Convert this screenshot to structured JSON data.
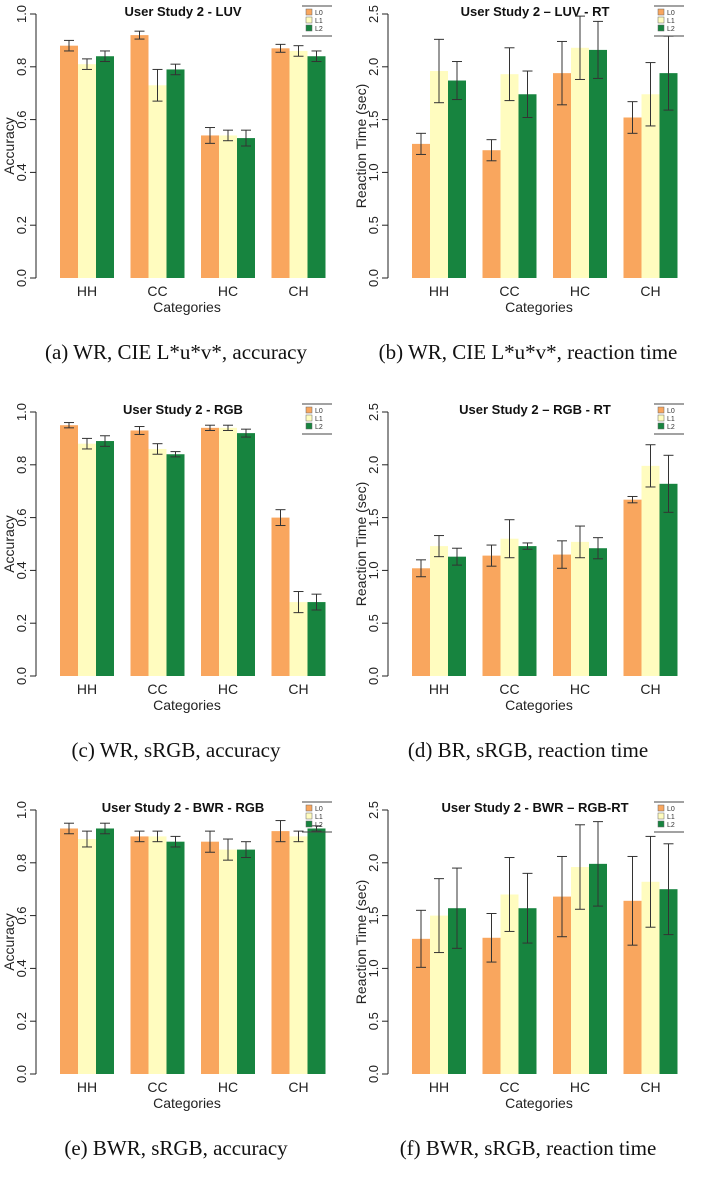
{
  "colors": {
    "L0": "#F9A65E",
    "L1": "#FFFCBF",
    "L2": "#17843F"
  },
  "chart_data": [
    {
      "type": "bar",
      "title": "User  Study 2 - LUV",
      "caption": "(a)  WR, CIE L*u*v*, accuracy",
      "xlabel": "Categories",
      "ylabel": "Accuracy",
      "ylim": [
        0,
        1.0
      ],
      "yticks": [
        "0.0",
        "0.2",
        "0.4",
        "0.6",
        "0.8",
        "1.0"
      ],
      "categories": [
        "HH",
        "CC",
        "HC",
        "CH"
      ],
      "legend": [
        "L0",
        "L1",
        "L2"
      ],
      "legend_position": "top-right",
      "series": [
        {
          "name": "L0",
          "values": [
            0.88,
            0.92,
            0.54,
            0.87
          ],
          "errors": [
            0.02,
            0.015,
            0.03,
            0.015
          ]
        },
        {
          "name": "L1",
          "values": [
            0.81,
            0.73,
            0.54,
            0.86
          ],
          "errors": [
            0.02,
            0.06,
            0.02,
            0.02
          ]
        },
        {
          "name": "L2",
          "values": [
            0.84,
            0.79,
            0.53,
            0.84
          ],
          "errors": [
            0.02,
            0.02,
            0.03,
            0.02
          ]
        }
      ]
    },
    {
      "type": "bar",
      "title": "User  Study 2 – LUV - RT",
      "caption": "(b)  WR, CIE L*u*v*, reaction time",
      "xlabel": "Categories",
      "ylabel": "Reaction Time (sec)",
      "ylim": [
        0,
        2.5
      ],
      "yticks": [
        "0.0",
        "0.5",
        "1.0",
        "1.5",
        "2.0",
        "2.5"
      ],
      "categories": [
        "HH",
        "CC",
        "HC",
        "CH"
      ],
      "legend": [
        "L0",
        "L1",
        "L2"
      ],
      "legend_position": "top-right",
      "series": [
        {
          "name": "L0",
          "values": [
            1.27,
            1.21,
            1.94,
            1.52
          ],
          "errors": [
            0.1,
            0.1,
            0.3,
            0.15
          ]
        },
        {
          "name": "L1",
          "values": [
            1.96,
            1.93,
            2.18,
            1.74
          ],
          "errors": [
            0.3,
            0.25,
            0.3,
            0.3
          ]
        },
        {
          "name": "L2",
          "values": [
            1.87,
            1.74,
            2.16,
            1.94
          ],
          "errors": [
            0.18,
            0.22,
            0.27,
            0.35
          ]
        }
      ]
    },
    {
      "type": "bar",
      "title": "User Study 2 - RGB",
      "caption": "(c)  WR, sRGB, accuracy",
      "xlabel": "Categories",
      "ylabel": "Accuracy",
      "ylim": [
        0,
        1.0
      ],
      "yticks": [
        "0.0",
        "0.2",
        "0.4",
        "0.6",
        "0.8",
        "1.0"
      ],
      "categories": [
        "HH",
        "CC",
        "HC",
        "CH"
      ],
      "legend": [
        "L0",
        "L1",
        "L2"
      ],
      "legend_position": "top-right",
      "series": [
        {
          "name": "L0",
          "values": [
            0.95,
            0.93,
            0.94,
            0.6
          ],
          "errors": [
            0.01,
            0.015,
            0.01,
            0.03
          ]
        },
        {
          "name": "L1",
          "values": [
            0.88,
            0.86,
            0.94,
            0.28
          ],
          "errors": [
            0.02,
            0.02,
            0.01,
            0.04
          ]
        },
        {
          "name": "L2",
          "values": [
            0.89,
            0.84,
            0.92,
            0.28
          ],
          "errors": [
            0.02,
            0.01,
            0.015,
            0.03
          ]
        }
      ]
    },
    {
      "type": "bar",
      "title": "User Study 2 – RGB - RT",
      "caption": "(d)  BR, sRGB, reaction time",
      "xlabel": "Categories",
      "ylabel": "Reaction Time (sec)",
      "ylim": [
        0,
        2.5
      ],
      "yticks": [
        "0.0",
        "0.5",
        "1.0",
        "1.5",
        "2.0",
        "2.5"
      ],
      "categories": [
        "HH",
        "CC",
        "HC",
        "CH"
      ],
      "legend": [
        "L0",
        "L1",
        "L2"
      ],
      "legend_position": "top-right",
      "series": [
        {
          "name": "L0",
          "values": [
            1.02,
            1.14,
            1.15,
            1.67
          ],
          "errors": [
            0.08,
            0.1,
            0.13,
            0.03
          ]
        },
        {
          "name": "L1",
          "values": [
            1.23,
            1.3,
            1.27,
            1.99
          ],
          "errors": [
            0.1,
            0.18,
            0.15,
            0.2
          ]
        },
        {
          "name": "L2",
          "values": [
            1.13,
            1.23,
            1.21,
            1.82
          ],
          "errors": [
            0.08,
            0.03,
            0.1,
            0.27
          ]
        }
      ]
    },
    {
      "type": "bar",
      "title": "User  Study 2 - BWR - RGB",
      "caption": "(e)  BWR, sRGB, accuracy",
      "xlabel": "Categories",
      "ylabel": "Accuracy",
      "ylim": [
        0,
        1.0
      ],
      "yticks": [
        "0.0",
        "0.2",
        "0.4",
        "0.6",
        "0.8",
        "1.0"
      ],
      "categories": [
        "HH",
        "CC",
        "HC",
        "CH"
      ],
      "legend": [
        "L0",
        "L1",
        "L2"
      ],
      "legend_position": "top-right",
      "series": [
        {
          "name": "L0",
          "values": [
            0.93,
            0.9,
            0.88,
            0.92
          ],
          "errors": [
            0.02,
            0.02,
            0.04,
            0.04
          ]
        },
        {
          "name": "L1",
          "values": [
            0.89,
            0.9,
            0.85,
            0.9
          ],
          "errors": [
            0.03,
            0.02,
            0.04,
            0.02
          ]
        },
        {
          "name": "L2",
          "values": [
            0.93,
            0.88,
            0.85,
            0.93
          ],
          "errors": [
            0.02,
            0.02,
            0.03,
            0.01
          ]
        }
      ]
    },
    {
      "type": "bar",
      "title": "User  Study 2 - BWR – RGB-RT",
      "caption": "(f)  BWR, sRGB, reaction time",
      "xlabel": "Categories",
      "ylabel": "Reaction Time (sec)",
      "ylim": [
        0,
        2.5
      ],
      "yticks": [
        "0.0",
        "0.5",
        "1.0",
        "1.5",
        "2.0",
        "2.5"
      ],
      "categories": [
        "HH",
        "CC",
        "HC",
        "CH"
      ],
      "legend": [
        "L0",
        "L1",
        "L2"
      ],
      "legend_position": "top-right",
      "series": [
        {
          "name": "L0",
          "values": [
            1.28,
            1.29,
            1.68,
            1.64
          ],
          "errors": [
            0.27,
            0.23,
            0.38,
            0.42
          ]
        },
        {
          "name": "L1",
          "values": [
            1.5,
            1.7,
            1.96,
            1.82
          ],
          "errors": [
            0.35,
            0.35,
            0.4,
            0.43
          ]
        },
        {
          "name": "L2",
          "values": [
            1.57,
            1.57,
            1.99,
            1.75
          ],
          "errors": [
            0.38,
            0.33,
            0.4,
            0.43
          ]
        }
      ]
    }
  ]
}
